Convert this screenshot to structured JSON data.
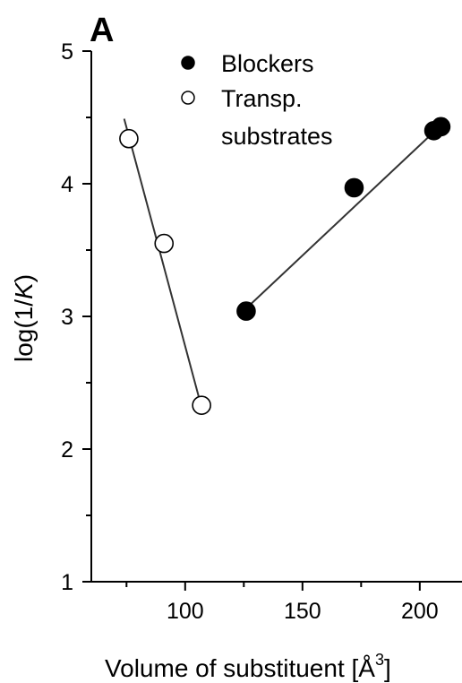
{
  "panel_label": "A",
  "chart_data": {
    "type": "scatter",
    "xlabel": "Volume of substituent [Å³]",
    "xlabel_main": "Volume of substituent [Å",
    "xlabel_sup": "3",
    "xlabel_end": "]",
    "ylabel": "log(1/K)",
    "ylabel_pre": "log(1/",
    "ylabel_italic": "K",
    "ylabel_post": ")",
    "xlim": [
      60,
      218
    ],
    "ylim": [
      1,
      5
    ],
    "xticks": [
      100,
      150,
      200
    ],
    "yticks": [
      1,
      2,
      3,
      4,
      5
    ],
    "grid": false,
    "legend_position": "top-right",
    "series": [
      {
        "name": "Blockers",
        "marker": "filled-circle",
        "color": "#000000",
        "x": [
          126,
          172,
          206,
          209
        ],
        "y": [
          3.04,
          3.97,
          4.4,
          4.43
        ],
        "fit_line": {
          "x": [
            126,
            209
          ],
          "y": [
            3.06,
            4.44
          ]
        }
      },
      {
        "name": "Transp. substrates",
        "legend_lines": [
          "Transp.",
          "substrates"
        ],
        "marker": "open-circle",
        "color": "#000000",
        "x": [
          76,
          91,
          107
        ],
        "y": [
          4.34,
          3.55,
          2.33
        ],
        "fit_line": {
          "x": [
            74,
            106
          ],
          "y": [
            4.49,
            2.38
          ]
        }
      }
    ]
  }
}
